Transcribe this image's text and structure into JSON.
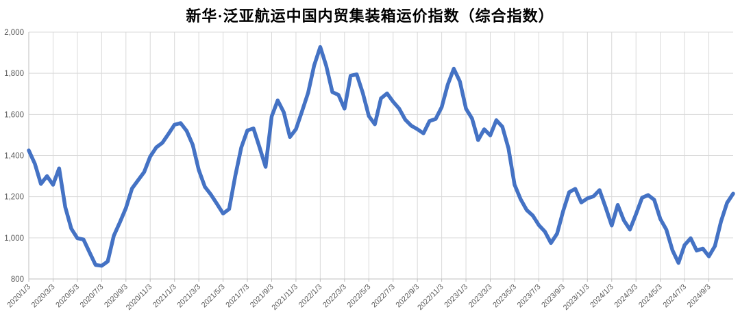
{
  "title": "新华·泛亚航运中国内贸集装箱运价指数（综合指数）",
  "colors": {
    "line": "#4472C4",
    "grid": "#D9D9D9",
    "axis": "#BFBFBF",
    "tick_label": "#595959",
    "title": "#000000",
    "background": "#FFFFFF"
  },
  "chart_data": {
    "type": "line",
    "title": "新华·泛亚航运中国内贸集装箱运价指数（综合指数）",
    "xlabel": "",
    "ylabel": "",
    "grid": true,
    "legend": "none",
    "ylim": [
      800,
      2000
    ],
    "y_ticks": [
      800,
      1000,
      1200,
      1400,
      1600,
      1800,
      2000
    ],
    "y_tick_labels": [
      "800",
      "1,000",
      "1,200",
      "1,400",
      "1,600",
      "1,800",
      "2,000"
    ],
    "xlim": [
      0,
      58
    ],
    "x_unit": "months since 2020/1/3 (data sampled ~semi-monthly)",
    "x_tick_positions": [
      0,
      2,
      4,
      6,
      8,
      10,
      12,
      14,
      16,
      18,
      20,
      22,
      24,
      26,
      28,
      30,
      32,
      34,
      36,
      38,
      40,
      42,
      44,
      46,
      48,
      50,
      52,
      54,
      56
    ],
    "x_tick_labels": [
      "2020/1/3",
      "2020/3/3",
      "2020/5/3",
      "2020/7/3",
      "2020/9/3",
      "2020/11/3",
      "2021/1/3",
      "2021/3/3",
      "2021/5/3",
      "2021/7/3",
      "2021/9/3",
      "2021/11/3",
      "2022/1/3",
      "2022/3/3",
      "2022/5/3",
      "2022/7/3",
      "2022/9/3",
      "2022/11/3",
      "2023/1/3",
      "2023/3/3",
      "2023/5/3",
      "2023/7/3",
      "2023/9/3",
      "2023/11/3",
      "2024/1/3",
      "2024/3/3",
      "2024/5/3",
      "2024/7/3",
      "2024/9/3"
    ],
    "series": [
      {
        "name": "综合指数",
        "x": [
          0,
          0.5,
          1,
          1.5,
          2,
          2.5,
          3,
          3.5,
          4,
          4.5,
          5,
          5.5,
          6,
          6.5,
          7,
          7.5,
          8,
          8.5,
          9,
          9.5,
          10,
          10.5,
          11,
          11.5,
          12,
          12.5,
          13,
          13.5,
          14,
          14.5,
          15,
          15.5,
          16,
          16.5,
          17,
          17.5,
          18,
          18.5,
          19,
          19.5,
          20,
          20.5,
          21,
          21.5,
          22,
          22.5,
          23,
          23.5,
          24,
          24.5,
          25,
          25.5,
          26,
          26.5,
          27,
          27.5,
          28,
          28.5,
          29,
          29.5,
          30,
          30.5,
          31,
          31.5,
          32,
          32.5,
          33,
          33.5,
          34,
          34.5,
          35,
          35.5,
          36,
          36.5,
          37,
          37.5,
          38,
          38.5,
          39,
          39.5,
          40,
          40.5,
          41,
          41.5,
          42,
          42.5,
          43,
          43.5,
          44,
          44.5,
          45,
          45.5,
          46,
          46.5,
          47,
          47.5,
          48,
          48.5,
          49,
          49.5,
          50,
          50.5,
          51,
          51.5,
          52,
          52.5,
          53,
          53.5,
          54,
          54.5,
          55,
          55.5,
          56,
          56.5,
          57,
          57.5,
          58
        ],
        "values": [
          1425,
          1360,
          1262,
          1300,
          1258,
          1338,
          1150,
          1045,
          998,
          992,
          930,
          868,
          864,
          885,
          1010,
          1075,
          1145,
          1240,
          1280,
          1320,
          1395,
          1440,
          1462,
          1505,
          1550,
          1558,
          1520,
          1452,
          1330,
          1248,
          1210,
          1165,
          1118,
          1140,
          1300,
          1440,
          1522,
          1532,
          1440,
          1345,
          1590,
          1668,
          1610,
          1490,
          1528,
          1615,
          1705,
          1838,
          1928,
          1835,
          1708,
          1695,
          1628,
          1788,
          1795,
          1705,
          1592,
          1552,
          1678,
          1702,
          1662,
          1628,
          1575,
          1545,
          1528,
          1508,
          1568,
          1578,
          1635,
          1745,
          1822,
          1760,
          1628,
          1580,
          1475,
          1528,
          1498,
          1572,
          1540,
          1435,
          1258,
          1188,
          1135,
          1108,
          1062,
          1030,
          975,
          1020,
          1130,
          1222,
          1238,
          1172,
          1192,
          1202,
          1232,
          1148,
          1060,
          1160,
          1085,
          1040,
          1115,
          1195,
          1208,
          1185,
          1092,
          1040,
          940,
          878,
          965,
          998,
          938,
          948,
          910,
          960,
          1080,
          1170,
          1215
        ]
      }
    ],
    "annotations": []
  }
}
